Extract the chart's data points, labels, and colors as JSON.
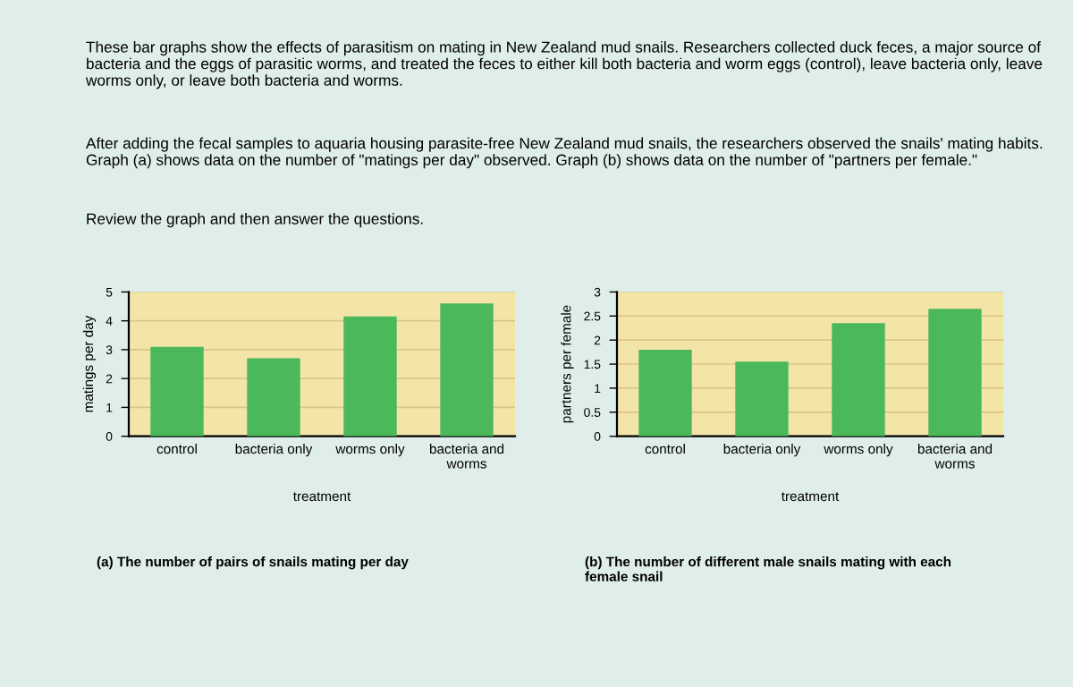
{
  "chart_data": [
    {
      "type": "bar",
      "xlabel": "treatment",
      "ylabel": "matings per day",
      "categories": [
        "control",
        "bacteria only",
        "worms only",
        "bacteria and\nworms"
      ],
      "values": [
        3.1,
        2.7,
        4.15,
        4.6
      ],
      "color": "#4cb85c",
      "ylim": [
        0,
        5
      ],
      "yticks": [
        0,
        1,
        2,
        3,
        4,
        5
      ],
      "grid": "y",
      "legend": false,
      "annotations": [
        "These bar graphs show the effects of parasitism on mating in New Zealand mud snails. Researchers collected duck feces, a major source of bacteria and the eggs of parasitic worms, and treated the feces to either kill both bacteria and worm eggs (control), leave bacteria only, leave worms only, or leave both bacteria and worms.",
        "After adding the fecal samples to aquaria housing parasite-free New Zealand mud snails, the researchers observed the snails' mating habits. Graph (a) shows data on the number of \"matings per day\" observed. Graph (b) shows data on the number of \"partners per female.\"",
        "Review the graph and then answer the questions.",
        "(a) The number of pairs of snails mating per day"
      ]
    },
    {
      "type": "bar",
      "xlabel": "treatment",
      "ylabel": "partners per female",
      "categories": [
        "control",
        "bacteria only",
        "worms only",
        "bacteria and\nworms"
      ],
      "values": [
        1.8,
        1.55,
        2.35,
        2.65
      ],
      "color": "#4cb85c",
      "ylim": [
        0,
        3
      ],
      "yticks": [
        0,
        0.5,
        1,
        1.5,
        2,
        2.5,
        3
      ],
      "grid": "y",
      "legend": false,
      "annotations": [
        "(b) The number of different male snails mating with each\nfemale snail"
      ]
    }
  ]
}
